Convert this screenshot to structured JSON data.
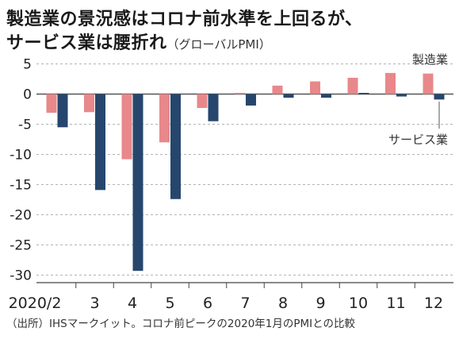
{
  "title_line1": "製造業の景況感はコロナ前水準を上回るが、",
  "title_line2": "サービス業は腰折れ",
  "title_line2_sub": "（グローバルPMI）",
  "source": "（出所）IHSマークイット。コロナ前ピークの2020年1月のPMIとの比較",
  "chart_data": {
    "type": "bar",
    "categories": [
      "2020/2",
      "3",
      "4",
      "5",
      "6",
      "7",
      "8",
      "9",
      "10",
      "11",
      "12"
    ],
    "series": [
      {
        "name": "製造業",
        "color": "#e8888a",
        "values": [
          -3.1,
          -3.0,
          -10.8,
          -8.0,
          -2.3,
          0.2,
          1.4,
          2.1,
          2.7,
          3.5,
          3.4
        ]
      },
      {
        "name": "サービス業",
        "color": "#26466d",
        "values": [
          -5.5,
          -15.9,
          -29.3,
          -17.4,
          -4.5,
          -1.9,
          -0.6,
          -0.6,
          0.2,
          -0.4,
          -0.9
        ]
      }
    ],
    "yticks": [
      "5",
      "0",
      "-5",
      "-10",
      "-15",
      "-20",
      "-25",
      "-30"
    ],
    "ylim": [
      -30,
      5
    ],
    "grid": true
  }
}
